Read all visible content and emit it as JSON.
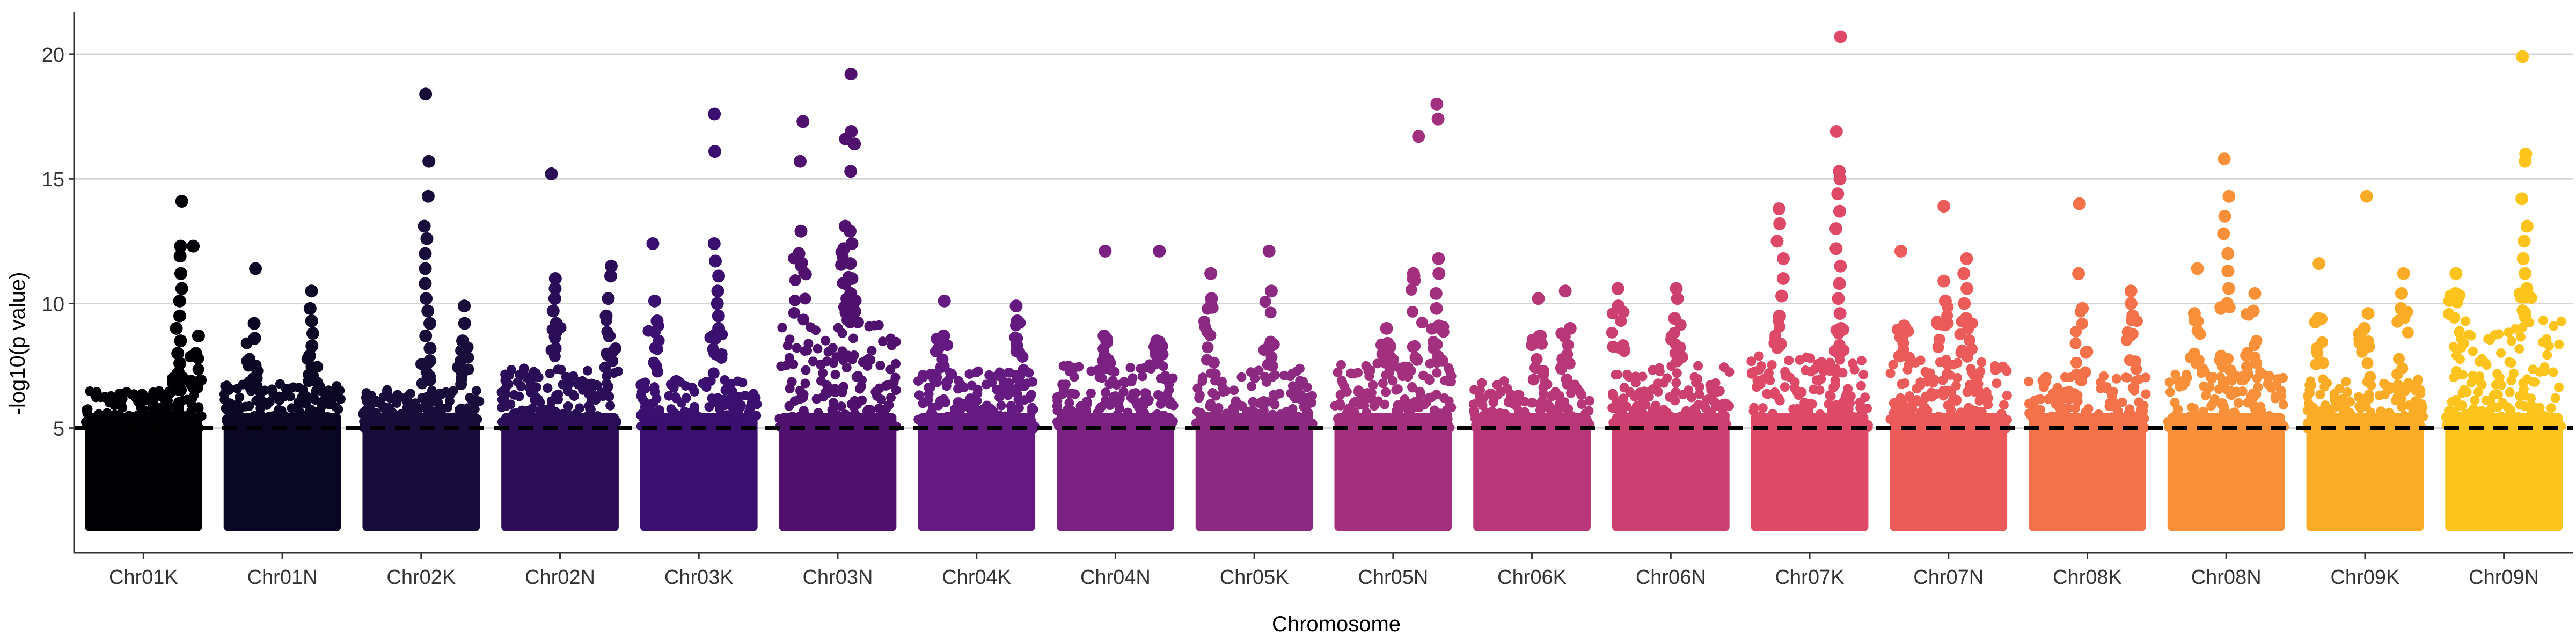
{
  "chart_data": {
    "type": "scatter",
    "subtype": "manhattan",
    "title": "",
    "xlabel": "Chromosome",
    "ylabel": "-log10(p value)",
    "ylim": [
      0,
      21.7
    ],
    "yticks": [
      5,
      10,
      15,
      20
    ],
    "threshold": 5,
    "grid": "horizontal major lines",
    "legend": "none",
    "colors": [
      "#000004",
      "#0a0724",
      "#180d3a",
      "#2a0c57",
      "#3b0f70",
      "#50106d",
      "#641a80",
      "#7a2182",
      "#8c2981",
      "#a3307e",
      "#b73779",
      "#cc3f71",
      "#de4968",
      "#ea5b5a",
      "#f4724a",
      "#f8903a",
      "#fbac27",
      "#fcc41c"
    ],
    "categories": [
      "Chr01K",
      "Chr01N",
      "Chr02K",
      "Chr02N",
      "Chr03K",
      "Chr03N",
      "Chr04K",
      "Chr04N",
      "Chr05K",
      "Chr05N",
      "Chr06K",
      "Chr06N",
      "Chr07K",
      "Chr07N",
      "Chr08K",
      "Chr08N",
      "Chr09K",
      "Chr09N"
    ],
    "series": [
      {
        "name": "Chr01K",
        "base_max": 6.5,
        "peaks": [
          {
            "pos": 0.8,
            "values": [
              14.1,
              12.3,
              11.9,
              11.2,
              10.6,
              10.1,
              9.5,
              9.0,
              8.5,
              8.0,
              7.6,
              7.2
            ]
          },
          {
            "pos": 0.95,
            "values": [
              12.3,
              8.7,
              8.0
            ]
          }
        ]
      },
      {
        "name": "Chr01N",
        "base_max": 6.8,
        "peaks": [
          {
            "pos": 0.25,
            "values": [
              11.4,
              9.2,
              8.6
            ]
          },
          {
            "pos": 0.75,
            "values": [
              10.5,
              9.8,
              9.3,
              8.8,
              8.3,
              7.9
            ]
          }
        ]
      },
      {
        "name": "Chr02K",
        "base_max": 6.6,
        "peaks": [
          {
            "pos": 0.55,
            "values": [
              18.4,
              15.7,
              14.3,
              13.1,
              12.6,
              12.0,
              11.4,
              10.8,
              10.2,
              9.7,
              9.2,
              8.7,
              8.2,
              7.7
            ]
          },
          {
            "pos": 0.85,
            "values": [
              9.9,
              9.2,
              8.5
            ]
          }
        ]
      },
      {
        "name": "Chr02N",
        "base_max": 7.4,
        "peaks": [
          {
            "pos": 0.45,
            "values": [
              15.2,
              11.0,
              10.6,
              10.2,
              9.7,
              9.2
            ]
          },
          {
            "pos": 0.92,
            "values": [
              11.5,
              11.1,
              10.2,
              9.5
            ]
          }
        ]
      },
      {
        "name": "Chr03K",
        "base_max": 7.0,
        "peaks": [
          {
            "pos": 0.12,
            "values": [
              12.4,
              10.1,
              9.3
            ]
          },
          {
            "pos": 0.65,
            "values": [
              17.6,
              16.1,
              12.4,
              11.7,
              11.1,
              10.5,
              10.0,
              9.5,
              9.0
            ]
          }
        ]
      },
      {
        "name": "Chr03N",
        "base_max": 9.2,
        "peaks": [
          {
            "pos": 0.18,
            "values": [
              17.3,
              15.7,
              12.9,
              12.0
            ]
          },
          {
            "pos": 0.55,
            "values": [
              16.6,
              13.1,
              12.2
            ]
          },
          {
            "pos": 0.62,
            "values": [
              19.2,
              16.9,
              16.4,
              15.3,
              12.9,
              12.4,
              11.6,
              11.0,
              10.4
            ]
          }
        ]
      },
      {
        "name": "Chr04K",
        "base_max": 7.3,
        "peaks": [
          {
            "pos": 0.2,
            "values": [
              10.1,
              8.7
            ]
          },
          {
            "pos": 0.85,
            "values": [
              9.9,
              9.3
            ]
          }
        ]
      },
      {
        "name": "Chr04N",
        "base_max": 7.6,
        "peaks": [
          {
            "pos": 0.42,
            "values": [
              12.1,
              8.7
            ]
          },
          {
            "pos": 0.85,
            "values": [
              12.1,
              8.5
            ]
          }
        ]
      },
      {
        "name": "Chr05K",
        "base_max": 7.4,
        "peaks": [
          {
            "pos": 0.12,
            "values": [
              11.2,
              10.2
            ]
          },
          {
            "pos": 0.62,
            "values": [
              12.1,
              10.5
            ]
          }
        ]
      },
      {
        "name": "Chr05N",
        "base_max": 7.6,
        "peaks": [
          {
            "pos": 0.45,
            "values": [
              9.0,
              8.4
            ]
          },
          {
            "pos": 0.7,
            "values": [
              16.7,
              11.2
            ]
          },
          {
            "pos": 0.88,
            "values": [
              18.0,
              17.4,
              11.8,
              11.2,
              10.4,
              9.8,
              9.1
            ]
          }
        ]
      },
      {
        "name": "Chr06K",
        "base_max": 6.9,
        "peaks": [
          {
            "pos": 0.55,
            "values": [
              10.2,
              8.7
            ]
          },
          {
            "pos": 0.8,
            "values": [
              10.5,
              9.0
            ]
          }
        ]
      },
      {
        "name": "Chr06N",
        "base_max": 7.5,
        "peaks": [
          {
            "pos": 0.05,
            "values": [
              10.6,
              9.9
            ]
          },
          {
            "pos": 0.55,
            "values": [
              10.6,
              10.2,
              9.4
            ]
          }
        ]
      },
      {
        "name": "Chr07K",
        "base_max": 7.9,
        "peaks": [
          {
            "pos": 0.25,
            "values": [
              13.8,
              13.2,
              12.5,
              11.8,
              11.0,
              10.3,
              9.5
            ]
          },
          {
            "pos": 0.75,
            "values": [
              20.7,
              16.9,
              15.3,
              15.0,
              14.4,
              13.7,
              13.0,
              12.2,
              11.5,
              10.8,
              10.2,
              9.6,
              9.0
            ]
          }
        ]
      },
      {
        "name": "Chr07N",
        "base_max": 7.8,
        "peaks": [
          {
            "pos": 0.12,
            "values": [
              12.1,
              9.1
            ]
          },
          {
            "pos": 0.45,
            "values": [
              13.9,
              10.9,
              10.1
            ]
          },
          {
            "pos": 0.65,
            "values": [
              11.8,
              11.2,
              10.6,
              10.0,
              9.4
            ]
          }
        ]
      },
      {
        "name": "Chr08K",
        "base_max": 7.1,
        "peaks": [
          {
            "pos": 0.45,
            "values": [
              14.0,
              11.2,
              9.8
            ]
          },
          {
            "pos": 0.88,
            "values": [
              10.5,
              10.0,
              9.5
            ]
          }
        ]
      },
      {
        "name": "Chr08N",
        "base_max": 7.3,
        "peaks": [
          {
            "pos": 0.25,
            "values": [
              11.4,
              9.6
            ]
          },
          {
            "pos": 0.5,
            "values": [
              15.8,
              14.3,
              13.5,
              12.8,
              12.0,
              11.3,
              10.6,
              10.0
            ]
          },
          {
            "pos": 0.72,
            "values": [
              10.4,
              9.7
            ]
          }
        ]
      },
      {
        "name": "Chr09K",
        "base_max": 7.0,
        "peaks": [
          {
            "pos": 0.1,
            "values": [
              11.6,
              9.4
            ]
          },
          {
            "pos": 0.5,
            "values": [
              14.3,
              9.6,
              9.0
            ]
          },
          {
            "pos": 0.82,
            "values": [
              11.2,
              10.4,
              9.8
            ]
          }
        ]
      },
      {
        "name": "Chr09N",
        "base_max": 9.4,
        "peaks": [
          {
            "pos": 0.08,
            "values": [
              11.2,
              10.4
            ]
          },
          {
            "pos": 0.68,
            "values": [
              19.9,
              16.0,
              15.7,
              14.2,
              13.1,
              12.5,
              11.8,
              11.2,
              10.6
            ]
          }
        ]
      }
    ]
  }
}
